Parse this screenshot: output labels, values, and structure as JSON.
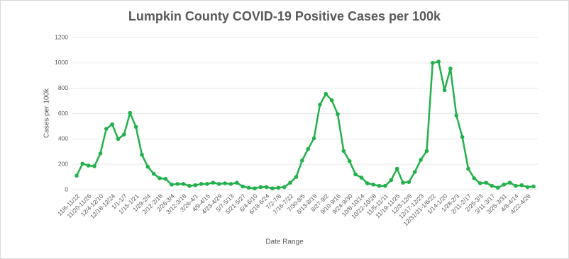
{
  "chart_data": {
    "type": "line",
    "title": "Lumpkin County COVID-19 Positive Cases per 100k",
    "x_label": "Date Range",
    "y_label": "Cases per 100k",
    "categories": [
      "11/6-11/12",
      null,
      "11/20-11/26",
      null,
      "12/4-12/10",
      null,
      "12/18-12/24",
      null,
      "1/1-1/7",
      null,
      "1/15-1/21",
      null,
      "1/29-2/4",
      null,
      "2/12-2/18",
      null,
      "2/26-3/4",
      null,
      "3/12-3/18",
      null,
      "3/26-4/1",
      null,
      "4/9-4/15",
      null,
      "4/23-4/29",
      null,
      "5/7-5/13",
      null,
      "5/21-5/27",
      null,
      "6/4-6/10",
      null,
      "6/18-6/24",
      null,
      "7/2-7/8",
      null,
      "7/16-7/22",
      null,
      "7/30-8/5",
      null,
      "8/13-8/19",
      null,
      "8/27-9/2",
      null,
      "9/10-9/16",
      null,
      "9/24-9/30",
      null,
      "10/8-10/14",
      null,
      "10/22-10/28",
      null,
      "11/5-11/11",
      null,
      "11/19-11/25",
      null,
      "12/3-12/9",
      null,
      "12/17-12/23",
      null,
      "12/31/21-1/6/22",
      null,
      "1/14-1/20",
      null,
      "1/28-2/3",
      null,
      "2/11-2/17",
      null,
      "2/25-3/3",
      null,
      "3/11-3/17",
      null,
      "3/25-3/31",
      null,
      "4/8-4/14",
      null,
      "4/22-4/28",
      null
    ],
    "series": [
      {
        "name": "Cases per 100k",
        "color": "#22b04b",
        "values": [
          110,
          205,
          190,
          185,
          285,
          480,
          515,
          400,
          435,
          605,
          495,
          275,
          180,
          125,
          90,
          85,
          40,
          45,
          45,
          30,
          35,
          45,
          45,
          55,
          45,
          50,
          45,
          55,
          25,
          15,
          10,
          20,
          20,
          10,
          15,
          20,
          55,
          100,
          230,
          320,
          405,
          670,
          755,
          705,
          595,
          305,
          225,
          120,
          95,
          50,
          40,
          30,
          30,
          75,
          165,
          55,
          60,
          140,
          235,
          305,
          1000,
          1010,
          785,
          955,
          585,
          415,
          165,
          90,
          50,
          55,
          30,
          15,
          40,
          55,
          30,
          35,
          20,
          25
        ]
      }
    ],
    "ylim": [
      0,
      1200
    ],
    "yticks": [
      0,
      200,
      400,
      600,
      800,
      1000,
      1200
    ],
    "grid": true
  }
}
